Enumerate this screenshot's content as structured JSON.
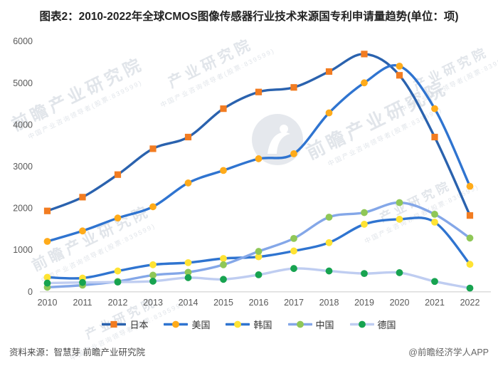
{
  "title": "图表2：2010-2022年全球CMOS图像传感器行业技术来源国专利申请量趋势(单位：项)",
  "footer": {
    "source_left": "资料来源：智慧芽 前瞻产业研究院",
    "source_right": "@前瞻经济学人APP"
  },
  "watermark": {
    "brand": "前瞻产业研究院",
    "sub": "中国产业咨询领导者(股票:839599)",
    "short": "产业研究院"
  },
  "chart_data": {
    "type": "line",
    "title": "图表2：2010-2022年全球CMOS图像传感器行业技术来源国专利申请量趋势(单位：项)",
    "categories": [
      "2010",
      "2011",
      "2012",
      "2013",
      "2014",
      "2015",
      "2016",
      "2017",
      "2018",
      "2019",
      "2020",
      "2021",
      "2022"
    ],
    "series": [
      {
        "key": "japan",
        "name": "日本",
        "marker": "square",
        "line_color": "#2A62AE",
        "marker_color": "#F27C21",
        "values": [
          1930,
          2260,
          2800,
          3420,
          3700,
          4380,
          4780,
          4890,
          5270,
          5690,
          5180,
          3700,
          1820
        ]
      },
      {
        "key": "usa",
        "name": "美国",
        "marker": "circle",
        "line_color": "#2F74D0",
        "marker_color": "#FFAB1A",
        "values": [
          1200,
          1450,
          1760,
          2030,
          2600,
          2900,
          3180,
          3300,
          4280,
          5000,
          5400,
          4380,
          2520
        ]
      },
      {
        "key": "korea",
        "name": "韩国",
        "marker": "circle",
        "line_color": "#2F74D0",
        "marker_color": "#FFE333",
        "values": [
          340,
          320,
          490,
          640,
          690,
          790,
          830,
          970,
          1170,
          1610,
          1730,
          1660,
          650
        ]
      },
      {
        "key": "china",
        "name": "中国",
        "marker": "circle",
        "line_color": "#84A7E8",
        "marker_color": "#8FC757",
        "values": [
          100,
          150,
          240,
          390,
          460,
          640,
          960,
          1270,
          1780,
          1890,
          2130,
          1850,
          1280
        ]
      },
      {
        "key": "germany",
        "name": "德国",
        "marker": "circle",
        "line_color": "#BFCDF1",
        "marker_color": "#17A350",
        "values": [
          200,
          215,
          225,
          245,
          330,
          290,
          400,
          550,
          490,
          430,
          450,
          240,
          80
        ]
      }
    ],
    "ylim": [
      0,
      6000
    ],
    "yticks": [
      0,
      1000,
      2000,
      3000,
      4000,
      5000,
      6000
    ],
    "xlabel": "",
    "ylabel": "",
    "grid": false,
    "legend_position": "bottom",
    "axis_color": "#595959"
  }
}
